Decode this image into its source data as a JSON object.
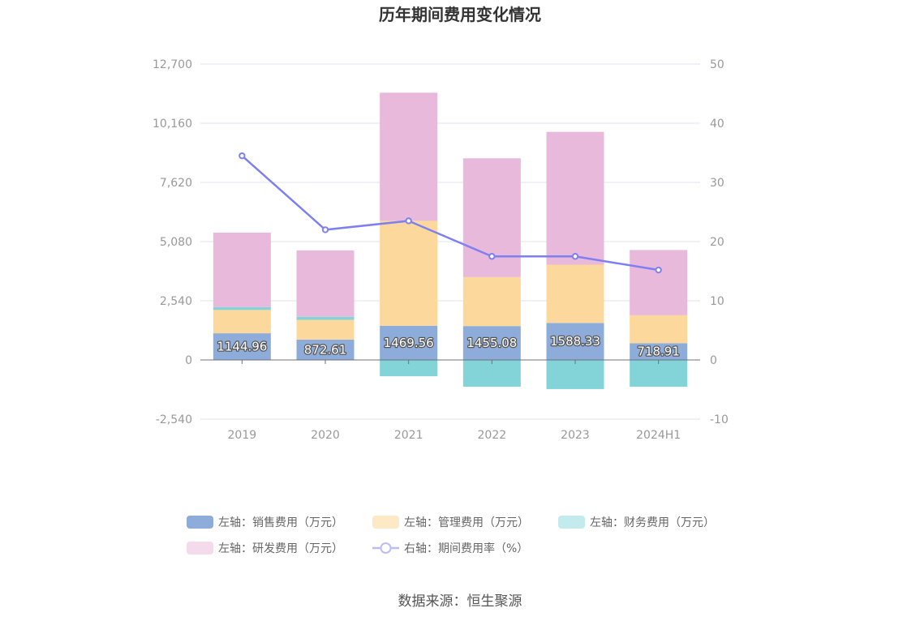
{
  "colors": {
    "sales": "#8EACDA",
    "admin": "#FDD89C",
    "finance": "#83D4D8",
    "rd": "#E8B9DA",
    "rate": "#7E80F2",
    "legend_admin": "#FEE9C6",
    "legend_finance": "#C3EBEE",
    "legend_rd": "#F3DBEC",
    "legend_rate": "#BCBDF7"
  },
  "chart_data": {
    "type": "bar",
    "stacked": true,
    "title": "历年期间费用变化情况",
    "categories": [
      "2019",
      "2020",
      "2021",
      "2022",
      "2023",
      "2024H1"
    ],
    "y_left": {
      "min": -2540,
      "max": 12700,
      "ticks": [
        -2540,
        0,
        2540,
        5080,
        7620,
        10160,
        12700
      ],
      "tick_labels": [
        "-2,540",
        "0",
        "2,540",
        "5,080",
        "7,620",
        "10,160",
        "12,700"
      ]
    },
    "y_right": {
      "min": -10,
      "max": 50,
      "ticks": [
        -10,
        0,
        10,
        20,
        30,
        40,
        50
      ],
      "tick_labels": [
        "-10",
        "0",
        "10",
        "20",
        "30",
        "40",
        "50"
      ]
    },
    "grid": true,
    "legend_position": "bottom",
    "series": [
      {
        "key": "sales",
        "name": "左轴：销售费用（万元）",
        "axis": "left",
        "type": "bar",
        "values": [
          1144.96,
          872.61,
          1469.56,
          1455.08,
          1588.33,
          718.91
        ],
        "labels": [
          "1144.96",
          "872.61",
          "1469.56",
          "1455.08",
          "1588.33",
          "718.91"
        ]
      },
      {
        "key": "admin",
        "name": "左轴：管理费用（万元）",
        "axis": "left",
        "type": "bar",
        "values": [
          1000,
          850,
          4500,
          2100,
          2500,
          1200
        ]
      },
      {
        "key": "finance",
        "name": "左轴：财务费用（万元）",
        "axis": "left",
        "type": "bar",
        "values": [
          120,
          130,
          -700,
          -1150,
          -1250,
          -1150
        ]
      },
      {
        "key": "rd",
        "name": "左轴：研发费用（万元）",
        "axis": "left",
        "type": "bar",
        "values": [
          3200,
          2850,
          5500,
          5100,
          5700,
          2800
        ]
      },
      {
        "key": "rate",
        "name": "右轴：期间费用率（%）",
        "axis": "right",
        "type": "line",
        "values": [
          34.5,
          22,
          23.5,
          17.5,
          17.5,
          15.2
        ]
      }
    ]
  },
  "source": "数据来源：恒生聚源"
}
